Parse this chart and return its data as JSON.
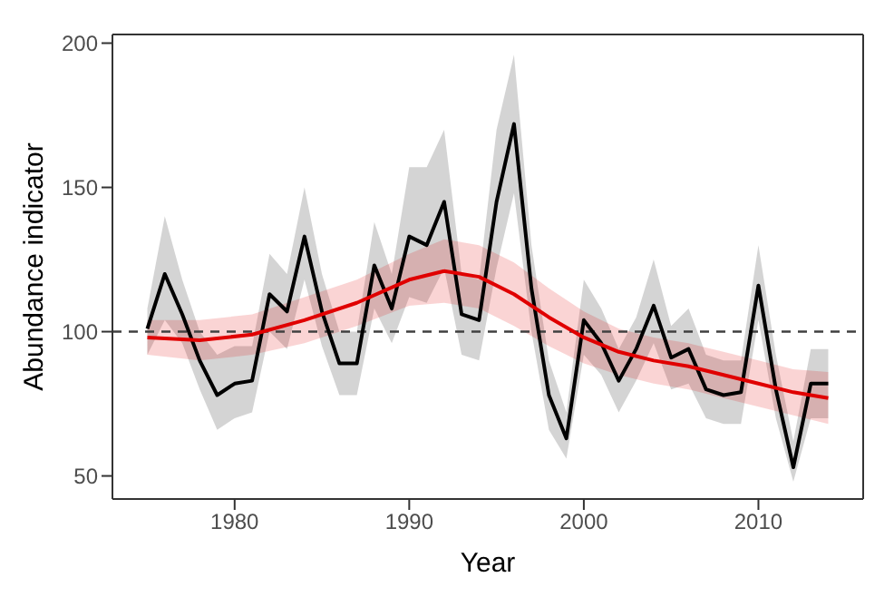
{
  "chart_data": {
    "type": "line",
    "xlabel": "Year",
    "ylabel": "Abundance indicator",
    "xlim": [
      1973,
      2016
    ],
    "ylim": [
      42,
      203
    ],
    "xticks": [
      1980,
      1990,
      2000,
      2010
    ],
    "yticks": [
      50,
      100,
      150,
      200
    ],
    "grid": false,
    "legend": false,
    "marker": "none",
    "x": [
      1975,
      1976,
      1977,
      1978,
      1979,
      1980,
      1981,
      1982,
      1983,
      1984,
      1985,
      1986,
      1987,
      1988,
      1989,
      1990,
      1991,
      1992,
      1993,
      1994,
      1995,
      1996,
      1997,
      1998,
      1999,
      2000,
      2001,
      2002,
      2003,
      2004,
      2005,
      2006,
      2007,
      2008,
      2009,
      2010,
      2011,
      2012,
      2013,
      2014
    ],
    "series": [
      {
        "color": "#000000",
        "values": [
          101,
          120,
          106,
          90,
          78,
          82,
          83,
          113,
          107,
          133,
          107,
          89,
          89,
          123,
          108,
          133,
          130,
          145,
          106,
          104,
          145,
          172,
          115,
          78,
          63,
          104,
          96,
          83,
          94,
          109,
          91,
          94,
          80,
          78,
          79,
          116,
          80,
          53,
          82,
          82
        ],
        "lower": [
          92,
          104,
          96,
          80,
          66,
          70,
          72,
          100,
          94,
          118,
          95,
          78,
          78,
          108,
          96,
          112,
          110,
          122,
          92,
          90,
          122,
          148,
          100,
          66,
          56,
          92,
          85,
          72,
          83,
          96,
          80,
          82,
          70,
          68,
          68,
          104,
          70,
          48,
          70,
          70
        ],
        "upper": [
          108,
          140,
          118,
          100,
          92,
          95,
          95,
          127,
          120,
          150,
          120,
          100,
          100,
          138,
          120,
          157,
          157,
          170,
          120,
          118,
          170,
          196,
          130,
          90,
          72,
          118,
          108,
          94,
          105,
          125,
          102,
          108,
          92,
          90,
          90,
          130,
          92,
          62,
          94,
          94
        ]
      },
      {
        "color": "#e00000",
        "x": [
          1975,
          1978,
          1981,
          1984,
          1987,
          1990,
          1992,
          1994,
          1996,
          1998,
          2000,
          2002,
          2004,
          2006,
          2008,
          2010,
          2012,
          2014
        ],
        "values": [
          98,
          97,
          99,
          104,
          110,
          118,
          121,
          119,
          113,
          105,
          98,
          93,
          90,
          88,
          85,
          82,
          79,
          77
        ],
        "lower": [
          92,
          90,
          92,
          96,
          102,
          109,
          110,
          108,
          102,
          95,
          89,
          85,
          82,
          80,
          77,
          74,
          71,
          68
        ],
        "upper": [
          104,
          104,
          106,
          112,
          118,
          127,
          132,
          130,
          124,
          115,
          107,
          101,
          98,
          96,
          93,
          90,
          87,
          86
        ]
      }
    ],
    "ref_lines": [
      {
        "axis": "y",
        "value": 100,
        "color": "#404040",
        "line_style": "dashed"
      }
    ]
  }
}
